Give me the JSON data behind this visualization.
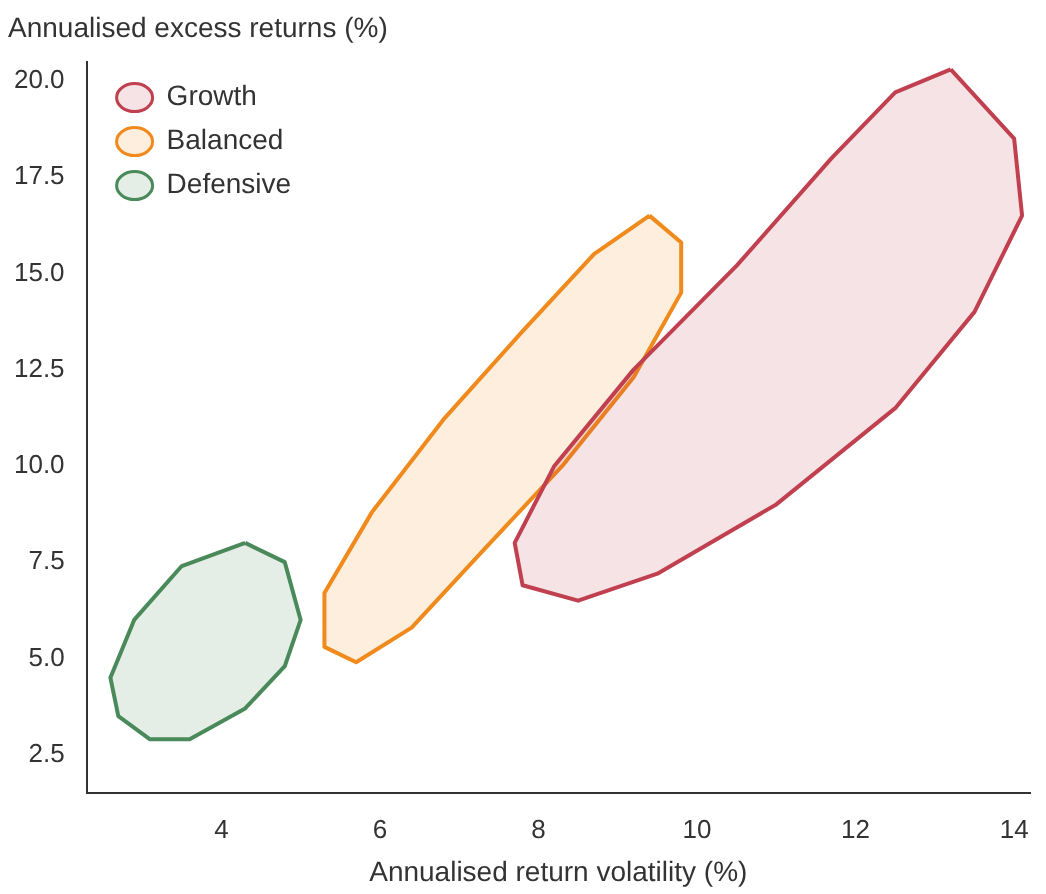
{
  "chart_data": {
    "type": "area",
    "ylabel": "Annualised excess returns (%)",
    "xlabel": "Annualised return volatility (%)",
    "marker": "none",
    "line_style": "solid",
    "grid": false,
    "legend": "top left",
    "xlim": [
      2.3,
      14.2
    ],
    "xticks": [
      4,
      6,
      8,
      10,
      12,
      14
    ],
    "ylim": [
      1.5,
      20.5
    ],
    "yticks": [
      {
        "value": 2.5,
        "label": "2.5"
      },
      {
        "value": 5,
        "label": "5.0"
      },
      {
        "value": 7.5,
        "label": "7.5"
      },
      {
        "value": 10,
        "label": "10.0"
      },
      {
        "value": 12.5,
        "label": "12.5"
      },
      {
        "value": 15,
        "label": "15.0"
      },
      {
        "value": 17.5,
        "label": "17.5"
      },
      {
        "value": 20,
        "label": "20.0"
      }
    ],
    "series": [
      {
        "name": "Growth",
        "color": "#c0404f",
        "x": [
          13.2,
          14.0,
          14.1,
          13.5,
          12.5,
          11,
          9.5,
          8.5,
          7.8,
          7.7,
          8.2,
          9.2,
          10.5,
          11.7,
          12.5,
          13.2
        ],
        "values": [
          20.3,
          18.5,
          16.5,
          14,
          11.5,
          9,
          7.2,
          6.5,
          6.9,
          8,
          10,
          12.5,
          15.2,
          18,
          19.7,
          20.3
        ]
      },
      {
        "name": "Balanced",
        "color": "#f08a1c",
        "x": [
          9.4,
          9.8,
          9.8,
          9.2,
          8.3,
          7.3,
          6.4,
          5.7,
          5.3,
          5.3,
          5.9,
          6.8,
          7.8,
          8.7,
          9.4
        ],
        "values": [
          16.5,
          15.8,
          14.5,
          12.3,
          10,
          7.8,
          5.8,
          4.9,
          5.3,
          6.7,
          8.8,
          11.2,
          13.5,
          15.5,
          16.5
        ]
      },
      {
        "name": "Defensive",
        "color": "#4a8a5a",
        "x": [
          4.3,
          4.8,
          5.0,
          4.8,
          4.3,
          3.6,
          3.1,
          2.7,
          2.6,
          2.9,
          3.5,
          4.3
        ],
        "values": [
          8.0,
          7.5,
          6.0,
          4.8,
          3.7,
          2.9,
          2.9,
          3.5,
          4.5,
          6.0,
          7.4,
          8.0
        ]
      }
    ]
  }
}
